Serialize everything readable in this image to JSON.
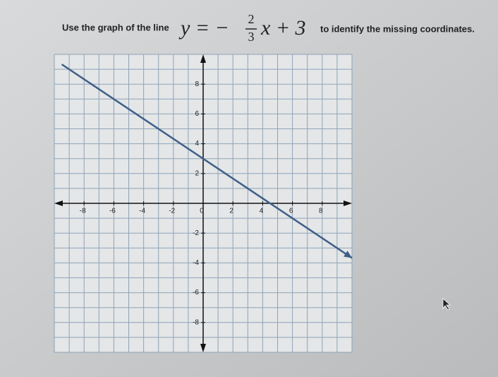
{
  "prompt_start": "Use the graph of the line",
  "equation": {
    "lhs": "y = −",
    "numerator": "2",
    "denominator": "3",
    "rhs": "x + 3"
  },
  "prompt_end": "to identify the missing coordinates.",
  "chart_data": {
    "type": "line",
    "xlim": [
      -10,
      10
    ],
    "ylim": [
      -10,
      10
    ],
    "xticks": [
      -8,
      -6,
      -4,
      -2,
      0,
      2,
      4,
      6,
      8
    ],
    "yticks": [
      -8,
      -6,
      -4,
      -2,
      2,
      4,
      6,
      8
    ],
    "xgrid": [
      -10,
      -9,
      -8,
      -7,
      -6,
      -5,
      -4,
      -3,
      -2,
      -1,
      0,
      1,
      2,
      3,
      4,
      5,
      6,
      7,
      8,
      9,
      10
    ],
    "ygrid": [
      -10,
      -9,
      -8,
      -7,
      -6,
      -5,
      -4,
      -3,
      -2,
      -1,
      0,
      1,
      2,
      3,
      4,
      5,
      6,
      7,
      8,
      9,
      10
    ],
    "grid": true,
    "series": [
      {
        "color": "#3f5f88",
        "x": [
          -9.5,
          10
        ],
        "values": [
          9.33,
          -3.67
        ]
      }
    ]
  }
}
